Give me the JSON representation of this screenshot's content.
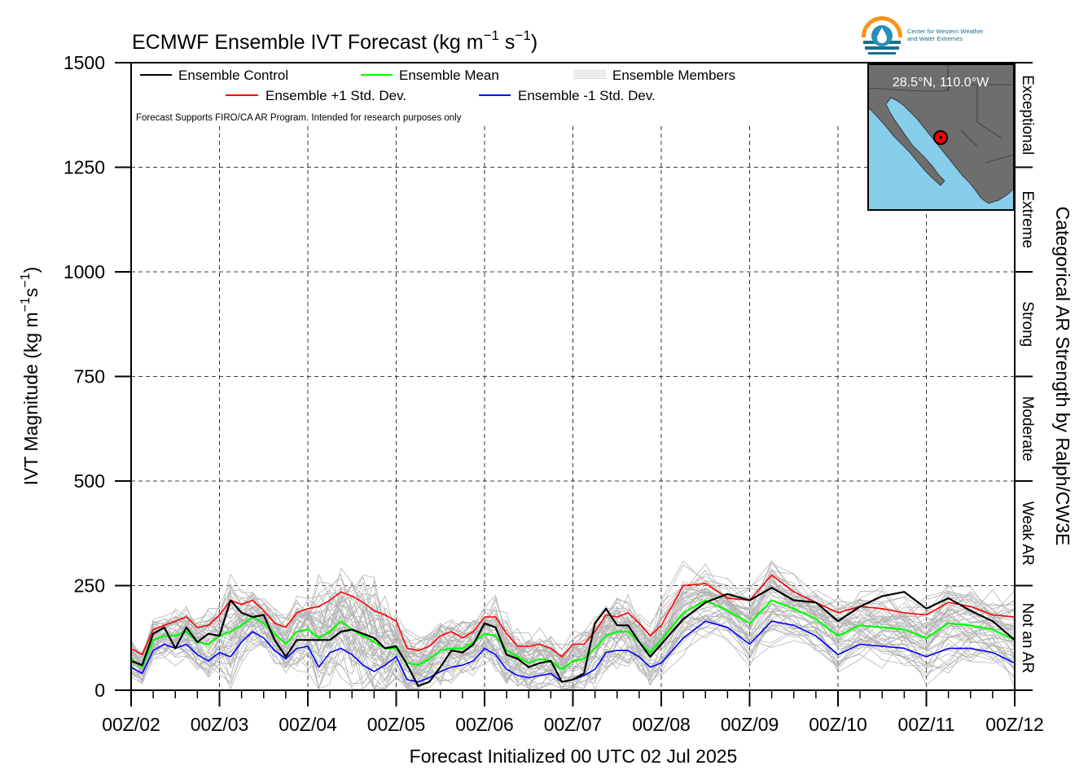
{
  "chart_data": {
    "type": "line",
    "title": "ECMWF Ensemble IVT Forecast (kg m",
    "title_units": {
      "exp1": "−1",
      "mid": " s",
      "exp2": "−1",
      "close": ")"
    },
    "xlabel": "Forecast Initialized 00 UTC 02 Jul 2025",
    "ylabel": {
      "main": "IVT Magnitude (kg m",
      "exp1": "−1",
      "mid": "s",
      "exp2": "−1",
      "close": ")"
    },
    "right_label": "Categorical AR Strength by Ralph/CW3E",
    "note": "Forecast Supports FIRO/CA AR Program. Intended for research purposes only",
    "location": "28.5°N, 110.0°W",
    "logo_text": [
      "Center for Western Weather",
      "and Water Extremes"
    ],
    "ylim": [
      0,
      1500
    ],
    "xlim": [
      0,
      240
    ],
    "x_unit": "forecast hours",
    "yticks": [
      0,
      250,
      500,
      750,
      1000,
      1250,
      1500
    ],
    "xticks": [
      {
        "x": 0,
        "label": "00Z/02"
      },
      {
        "x": 24,
        "label": "00Z/03"
      },
      {
        "x": 48,
        "label": "00Z/04"
      },
      {
        "x": 72,
        "label": "00Z/05"
      },
      {
        "x": 96,
        "label": "00Z/06"
      },
      {
        "x": 120,
        "label": "00Z/07"
      },
      {
        "x": 144,
        "label": "00Z/08"
      },
      {
        "x": 168,
        "label": "00Z/09"
      },
      {
        "x": 192,
        "label": "00Z/10"
      },
      {
        "x": 216,
        "label": "00Z/11"
      },
      {
        "x": 240,
        "label": "00Z/12"
      }
    ],
    "categories": [
      {
        "label": "Not an AR",
        "from": 0,
        "to": 250
      },
      {
        "label": "Weak AR",
        "from": 250,
        "to": 500
      },
      {
        "label": "Moderate",
        "from": 500,
        "to": 750
      },
      {
        "label": "Strong",
        "from": 750,
        "to": 1000
      },
      {
        "label": "Extreme",
        "from": 1000,
        "to": 1250
      },
      {
        "label": "Exceptional",
        "from": 1250,
        "to": 1500
      }
    ],
    "grid": true,
    "legend_position": "top-left",
    "legend": [
      {
        "key": "control",
        "label": "Ensemble Control",
        "color": "#000000"
      },
      {
        "key": "mean",
        "label": "Ensemble Mean",
        "color": "#00ff00"
      },
      {
        "key": "members",
        "label": "Ensemble Members",
        "color": "#b4b4b4"
      },
      {
        "key": "plus",
        "label": "Ensemble +1 Std. Dev.",
        "color": "#ff0000"
      },
      {
        "key": "minus",
        "label": "Ensemble -1 Std. Dev.",
        "color": "#0000ff"
      }
    ],
    "series": [
      {
        "name": "Ensemble Control",
        "color": "#000000",
        "width": 2.2,
        "x": [
          0,
          3,
          6,
          9,
          12,
          15,
          18,
          21,
          24,
          27,
          30,
          33,
          36,
          39,
          42,
          45,
          48,
          51,
          54,
          57,
          60,
          63,
          66,
          69,
          72,
          75,
          78,
          81,
          84,
          87,
          90,
          93,
          96,
          99,
          102,
          105,
          108,
          111,
          114,
          117,
          120,
          123,
          126,
          129,
          132,
          135,
          138,
          141,
          144,
          150,
          156,
          162,
          168,
          174,
          180,
          186,
          192,
          198,
          204,
          210,
          216,
          222,
          228,
          234,
          240
        ],
        "y": [
          70,
          60,
          135,
          150,
          100,
          150,
          115,
          135,
          130,
          215,
          185,
          175,
          180,
          120,
          80,
          120,
          120,
          120,
          120,
          140,
          145,
          135,
          125,
          100,
          105,
          60,
          10,
          20,
          55,
          95,
          90,
          110,
          160,
          150,
          85,
          75,
          55,
          65,
          70,
          20,
          25,
          40,
          160,
          195,
          155,
          155,
          115,
          80,
          110,
          170,
          210,
          230,
          215,
          245,
          215,
          210,
          165,
          200,
          225,
          235,
          195,
          220,
          190,
          165,
          120
        ]
      },
      {
        "name": "Ensemble Mean",
        "color": "#00ff00",
        "width": 2.2,
        "x": [
          0,
          3,
          6,
          9,
          12,
          15,
          18,
          21,
          24,
          27,
          30,
          33,
          36,
          39,
          42,
          45,
          48,
          51,
          54,
          57,
          60,
          63,
          66,
          69,
          72,
          75,
          78,
          81,
          84,
          87,
          90,
          93,
          96,
          99,
          102,
          105,
          108,
          111,
          114,
          117,
          120,
          123,
          126,
          129,
          132,
          135,
          138,
          141,
          144,
          150,
          156,
          162,
          168,
          174,
          180,
          186,
          192,
          198,
          204,
          210,
          216,
          222,
          228,
          234,
          240
        ],
        "y": [
          75,
          55,
          120,
          130,
          130,
          140,
          115,
          110,
          130,
          140,
          155,
          175,
          160,
          135,
          110,
          140,
          145,
          125,
          140,
          165,
          145,
          130,
          115,
          100,
          100,
          65,
          60,
          75,
          95,
          100,
          100,
          115,
          135,
          130,
          95,
          80,
          65,
          75,
          70,
          50,
          70,
          75,
          100,
          130,
          140,
          140,
          115,
          90,
          120,
          185,
          215,
          190,
          160,
          215,
          195,
          170,
          130,
          155,
          150,
          145,
          125,
          160,
          155,
          145,
          120
        ]
      },
      {
        "name": "Ensemble +1 Std. Dev.",
        "color": "#ff0000",
        "width": 1.6,
        "x": [
          0,
          3,
          6,
          9,
          12,
          15,
          18,
          21,
          24,
          27,
          30,
          33,
          36,
          39,
          42,
          45,
          48,
          51,
          54,
          57,
          60,
          63,
          66,
          69,
          72,
          75,
          78,
          81,
          84,
          87,
          90,
          93,
          96,
          99,
          102,
          105,
          108,
          111,
          114,
          117,
          120,
          123,
          126,
          129,
          132,
          135,
          138,
          141,
          144,
          150,
          156,
          162,
          168,
          174,
          180,
          186,
          192,
          198,
          204,
          210,
          216,
          222,
          228,
          234,
          240
        ],
        "y": [
          100,
          85,
          145,
          155,
          165,
          175,
          150,
          155,
          180,
          215,
          205,
          215,
          190,
          160,
          150,
          185,
          195,
          200,
          215,
          235,
          225,
          210,
          190,
          180,
          165,
          100,
          95,
          105,
          130,
          140,
          125,
          140,
          175,
          175,
          135,
          105,
          105,
          110,
          100,
          80,
          110,
          110,
          140,
          180,
          175,
          185,
          160,
          130,
          155,
          250,
          255,
          220,
          215,
          275,
          235,
          210,
          185,
          200,
          195,
          185,
          180,
          210,
          200,
          180,
          175
        ]
      },
      {
        "name": "Ensemble -1 Std. Dev.",
        "color": "#0000ff",
        "width": 1.6,
        "x": [
          0,
          3,
          6,
          9,
          12,
          15,
          18,
          21,
          24,
          27,
          30,
          33,
          36,
          39,
          42,
          45,
          48,
          51,
          54,
          57,
          60,
          63,
          66,
          69,
          72,
          75,
          78,
          81,
          84,
          87,
          90,
          93,
          96,
          99,
          102,
          105,
          108,
          111,
          114,
          117,
          120,
          123,
          126,
          129,
          132,
          135,
          138,
          141,
          144,
          150,
          156,
          162,
          168,
          174,
          180,
          186,
          192,
          198,
          204,
          210,
          216,
          222,
          228,
          234,
          240
        ],
        "y": [
          55,
          40,
          95,
          110,
          100,
          110,
          85,
          70,
          90,
          80,
          115,
          140,
          125,
          95,
          75,
          100,
          105,
          55,
          90,
          100,
          85,
          60,
          45,
          60,
          80,
          25,
          20,
          30,
          45,
          55,
          60,
          70,
          100,
          85,
          50,
          35,
          30,
          35,
          40,
          20,
          25,
          35,
          50,
          90,
          95,
          95,
          80,
          55,
          65,
          125,
          165,
          150,
          110,
          165,
          155,
          130,
          85,
          110,
          105,
          100,
          80,
          100,
          100,
          90,
          65
        ]
      }
    ]
  }
}
